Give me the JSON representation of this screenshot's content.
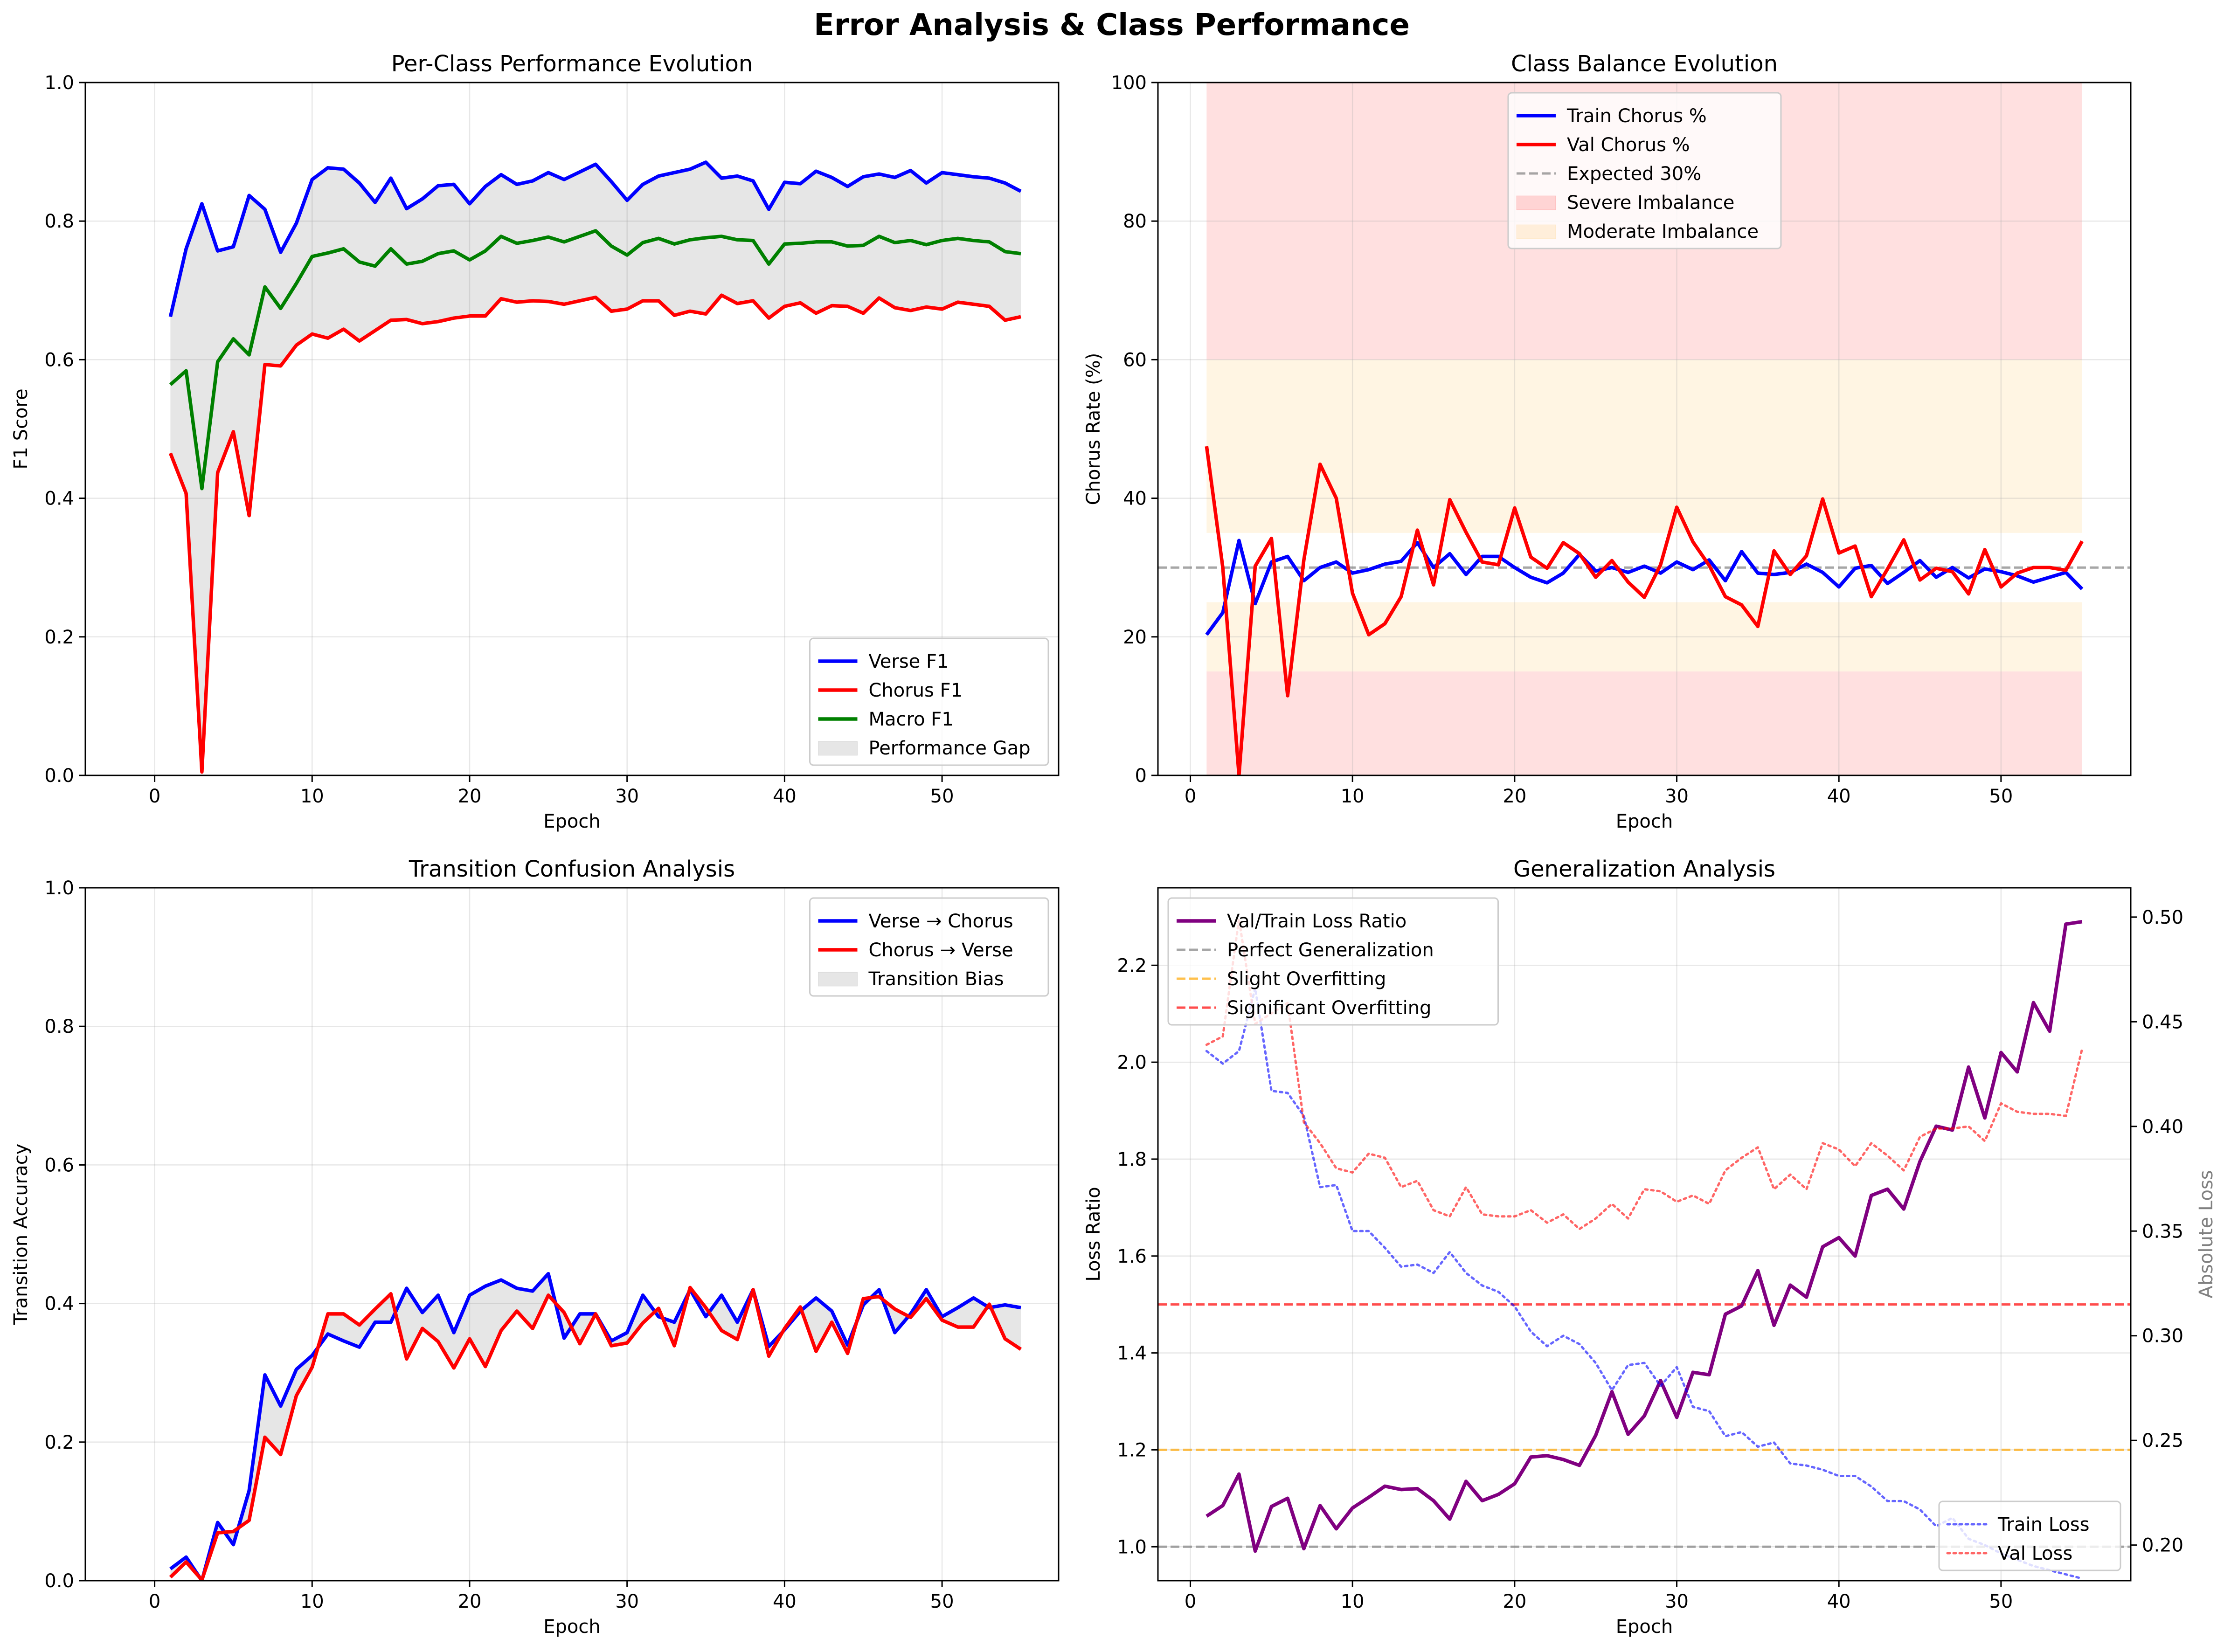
{
  "suptitle": "Error Analysis & Class Performance",
  "chart_data": [
    {
      "type": "line",
      "title": "Per-Class Performance Evolution",
      "xlabel": "Epoch",
      "ylabel": "F1 Score",
      "xlim": [
        -4.4,
        57.4
      ],
      "ylim": [
        0,
        1.0
      ],
      "xticks": [
        0,
        10,
        20,
        30,
        40,
        50
      ],
      "yticks": [
        0.0,
        0.2,
        0.4,
        0.6,
        0.8,
        1.0
      ],
      "ytick_decimals": 1,
      "grid": true,
      "legend_position": "lower-right",
      "x": [
        1,
        2,
        3,
        4,
        5,
        6,
        7,
        8,
        9,
        10,
        11,
        12,
        13,
        14,
        15,
        16,
        17,
        18,
        19,
        20,
        21,
        22,
        23,
        24,
        25,
        26,
        27,
        28,
        29,
        30,
        31,
        32,
        33,
        34,
        35,
        36,
        37,
        38,
        39,
        40,
        41,
        42,
        43,
        44,
        45,
        46,
        47,
        48,
        49,
        50,
        51,
        52,
        53,
        54,
        55
      ],
      "series": [
        {
          "name": "Verse F1",
          "color": "#0000ff",
          "values": [
            0.662,
            0.76,
            0.825,
            0.757,
            0.763,
            0.837,
            0.817,
            0.755,
            0.797,
            0.86,
            0.877,
            0.875,
            0.855,
            0.827,
            0.862,
            0.818,
            0.832,
            0.851,
            0.853,
            0.825,
            0.85,
            0.867,
            0.853,
            0.858,
            0.87,
            0.86,
            0.871,
            0.882,
            0.857,
            0.83,
            0.853,
            0.865,
            0.87,
            0.875,
            0.885,
            0.862,
            0.865,
            0.858,
            0.817,
            0.856,
            0.854,
            0.872,
            0.863,
            0.85,
            0.864,
            0.868,
            0.863,
            0.873,
            0.855,
            0.87,
            0.867,
            0.864,
            0.862,
            0.855,
            0.843
          ]
        },
        {
          "name": "Chorus F1",
          "color": "#ff0000",
          "values": [
            0.465,
            0.407,
            0.005,
            0.437,
            0.496,
            0.375,
            0.593,
            0.591,
            0.621,
            0.637,
            0.631,
            0.644,
            0.627,
            0.642,
            0.657,
            0.658,
            0.652,
            0.655,
            0.66,
            0.663,
            0.663,
            0.688,
            0.683,
            0.685,
            0.684,
            0.68,
            0.685,
            0.69,
            0.67,
            0.673,
            0.685,
            0.685,
            0.664,
            0.67,
            0.666,
            0.693,
            0.681,
            0.685,
            0.66,
            0.677,
            0.682,
            0.667,
            0.678,
            0.677,
            0.667,
            0.689,
            0.675,
            0.671,
            0.676,
            0.673,
            0.683,
            0.68,
            0.677,
            0.657,
            0.662
          ]
        },
        {
          "name": "Macro F1",
          "color": "#008000",
          "values": [
            0.564,
            0.584,
            0.414,
            0.597,
            0.63,
            0.607,
            0.705,
            0.674,
            0.71,
            0.749,
            0.754,
            0.76,
            0.741,
            0.735,
            0.76,
            0.738,
            0.742,
            0.753,
            0.757,
            0.744,
            0.757,
            0.778,
            0.768,
            0.772,
            0.777,
            0.77,
            0.778,
            0.786,
            0.764,
            0.751,
            0.769,
            0.775,
            0.767,
            0.773,
            0.776,
            0.778,
            0.773,
            0.772,
            0.738,
            0.767,
            0.768,
            0.77,
            0.77,
            0.764,
            0.765,
            0.778,
            0.769,
            0.772,
            0.766,
            0.772,
            0.775,
            0.772,
            0.77,
            0.756,
            0.753
          ]
        }
      ],
      "fill_between": {
        "name": "Performance Gap",
        "upper": "Verse F1",
        "lower": "Chorus F1",
        "color": "#808080"
      }
    },
    {
      "type": "line",
      "title": "Class Balance Evolution",
      "xlabel": "Epoch",
      "ylabel": "Chorus Rate (%)",
      "xlim": [
        -2.0,
        58.0
      ],
      "ylim": [
        0,
        100
      ],
      "xticks": [
        0,
        10,
        20,
        30,
        40,
        50
      ],
      "yticks": [
        0,
        20,
        40,
        60,
        80,
        100
      ],
      "ytick_decimals": 0,
      "grid": true,
      "legend_position": "upper-center",
      "x": [
        1,
        2,
        3,
        4,
        5,
        6,
        7,
        8,
        9,
        10,
        11,
        12,
        13,
        14,
        15,
        16,
        17,
        18,
        19,
        20,
        21,
        22,
        23,
        24,
        25,
        26,
        27,
        28,
        29,
        30,
        31,
        32,
        33,
        34,
        35,
        36,
        37,
        38,
        39,
        40,
        41,
        42,
        43,
        44,
        45,
        46,
        47,
        48,
        49,
        50,
        51,
        52,
        53,
        54,
        55
      ],
      "series": [
        {
          "name": "Train Chorus %",
          "color": "#0000ff",
          "values": [
            20.3,
            23.5,
            33.9,
            24.8,
            30.8,
            31.6,
            28.1,
            30.0,
            30.8,
            29.2,
            29.7,
            30.5,
            30.9,
            33.6,
            30.0,
            32.0,
            29.0,
            31.6,
            31.6,
            30.0,
            28.6,
            27.8,
            29.2,
            31.9,
            29.5,
            30.0,
            29.3,
            30.2,
            29.2,
            30.8,
            29.7,
            31.1,
            28.1,
            32.3,
            29.2,
            29.0,
            29.3,
            30.5,
            29.3,
            27.2,
            29.9,
            30.3,
            27.7,
            29.3,
            31.0,
            28.6,
            30.0,
            28.5,
            29.8,
            29.4,
            28.8,
            27.9,
            28.6,
            29.3,
            26.9
          ]
        },
        {
          "name": "Val Chorus %",
          "color": "#ff0000",
          "values": [
            47.5,
            30.0,
            0.0,
            30.2,
            34.2,
            11.5,
            31.1,
            44.9,
            40.0,
            26.3,
            20.3,
            21.9,
            25.8,
            35.4,
            27.5,
            39.8,
            35.1,
            30.8,
            30.4,
            38.6,
            31.5,
            29.9,
            33.6,
            32.0,
            28.6,
            31.0,
            27.9,
            25.7,
            30.4,
            38.7,
            33.7,
            30.3,
            25.8,
            24.6,
            21.5,
            32.4,
            29.0,
            31.7,
            39.9,
            32.1,
            33.1,
            25.8,
            29.8,
            34.0,
            28.2,
            29.9,
            29.4,
            26.2,
            32.6,
            27.2,
            29.2,
            30.0,
            30.0,
            29.6,
            33.8
          ]
        }
      ],
      "reference_line": {
        "name": "Expected 30%",
        "y": 30,
        "color": "#808080"
      },
      "bands": [
        {
          "name": "Severe Imbalance",
          "ranges": [
            [
              0,
              15
            ],
            [
              60,
              100
            ]
          ],
          "x_range": [
            1,
            55
          ],
          "color": "#ff0000"
        },
        {
          "name": "Moderate Imbalance",
          "ranges": [
            [
              15,
              25
            ],
            [
              35,
              60
            ]
          ],
          "x_range": [
            1,
            55
          ],
          "color": "#ffa500"
        }
      ]
    },
    {
      "type": "line",
      "title": "Transition Confusion Analysis",
      "xlabel": "Epoch",
      "ylabel": "Transition Accuracy",
      "xlim": [
        -4.4,
        57.4
      ],
      "ylim": [
        0,
        1.0
      ],
      "xticks": [
        0,
        10,
        20,
        30,
        40,
        50
      ],
      "yticks": [
        0.0,
        0.2,
        0.4,
        0.6,
        0.8,
        1.0
      ],
      "ytick_decimals": 1,
      "grid": true,
      "legend_position": "top-right",
      "x": [
        1,
        2,
        3,
        4,
        5,
        6,
        7,
        8,
        9,
        10,
        11,
        12,
        13,
        14,
        15,
        16,
        17,
        18,
        19,
        20,
        21,
        22,
        23,
        24,
        25,
        26,
        27,
        28,
        29,
        30,
        31,
        32,
        33,
        34,
        35,
        36,
        37,
        38,
        39,
        40,
        41,
        42,
        43,
        44,
        45,
        46,
        47,
        48,
        49,
        50,
        51,
        52,
        53,
        54,
        55
      ],
      "series": [
        {
          "name": "Verse → Chorus",
          "color": "#0000ff",
          "values": [
            0.017,
            0.034,
            0.0,
            0.084,
            0.052,
            0.13,
            0.297,
            0.252,
            0.305,
            0.325,
            0.356,
            0.346,
            0.337,
            0.373,
            0.373,
            0.422,
            0.387,
            0.412,
            0.358,
            0.412,
            0.425,
            0.434,
            0.422,
            0.418,
            0.443,
            0.35,
            0.385,
            0.385,
            0.346,
            0.358,
            0.412,
            0.381,
            0.373,
            0.42,
            0.381,
            0.412,
            0.373,
            0.42,
            0.338,
            0.362,
            0.389,
            0.408,
            0.389,
            0.34,
            0.398,
            0.42,
            0.358,
            0.385,
            0.42,
            0.381,
            0.394,
            0.408,
            0.394,
            0.398,
            0.394
          ]
        },
        {
          "name": "Chorus → Verse",
          "color": "#ff0000",
          "values": [
            0.005,
            0.027,
            0.001,
            0.069,
            0.071,
            0.087,
            0.207,
            0.182,
            0.267,
            0.308,
            0.385,
            0.385,
            0.369,
            0.392,
            0.414,
            0.32,
            0.364,
            0.345,
            0.307,
            0.349,
            0.309,
            0.361,
            0.389,
            0.364,
            0.412,
            0.387,
            0.342,
            0.385,
            0.339,
            0.343,
            0.372,
            0.393,
            0.339,
            0.423,
            0.394,
            0.361,
            0.348,
            0.42,
            0.324,
            0.364,
            0.395,
            0.331,
            0.373,
            0.328,
            0.407,
            0.41,
            0.392,
            0.38,
            0.407,
            0.376,
            0.366,
            0.366,
            0.399,
            0.349,
            0.334
          ]
        }
      ],
      "fill_between": {
        "name": "Transition Bias",
        "upper": "Verse → Chorus",
        "lower": "Chorus → Verse",
        "color": "#808080"
      }
    },
    {
      "type": "line",
      "title": "Generalization Analysis",
      "xlabel": "Epoch",
      "ylabel": "Loss Ratio",
      "y2label": "Absolute Loss",
      "xlim": [
        -2.0,
        58.0
      ],
      "ylim": [
        0.93,
        2.36
      ],
      "y2lim": [
        0.183,
        0.514
      ],
      "xticks": [
        0,
        10,
        20,
        30,
        40,
        50
      ],
      "yticks": [
        1.0,
        1.2,
        1.4,
        1.6,
        1.8,
        2.0,
        2.2
      ],
      "y2ticks": [
        0.2,
        0.25,
        0.3,
        0.35,
        0.4,
        0.45,
        0.5
      ],
      "ytick_decimals": 1,
      "y2tick_decimals": 2,
      "grid": true,
      "legend_position": "top-left",
      "legend2_position": "bottom-right",
      "x": [
        1,
        2,
        3,
        4,
        5,
        6,
        7,
        8,
        9,
        10,
        11,
        12,
        13,
        14,
        15,
        16,
        17,
        18,
        19,
        20,
        21,
        22,
        23,
        24,
        25,
        26,
        27,
        28,
        29,
        30,
        31,
        32,
        33,
        34,
        35,
        36,
        37,
        38,
        39,
        40,
        41,
        42,
        43,
        44,
        45,
        46,
        47,
        48,
        49,
        50,
        51,
        52,
        53,
        54,
        55
      ],
      "series": [
        {
          "name": "Val/Train Loss Ratio",
          "axis": "left",
          "color": "#800080",
          "values": [
            1.063,
            1.085,
            1.15,
            0.991,
            1.083,
            1.1,
            0.996,
            1.085,
            1.037,
            1.08,
            1.102,
            1.125,
            1.118,
            1.12,
            1.095,
            1.057,
            1.135,
            1.095,
            1.108,
            1.13,
            1.185,
            1.188,
            1.18,
            1.168,
            1.23,
            1.32,
            1.232,
            1.27,
            1.343,
            1.267,
            1.36,
            1.355,
            1.48,
            1.497,
            1.57,
            1.457,
            1.54,
            1.515,
            1.619,
            1.638,
            1.6,
            1.725,
            1.738,
            1.697,
            1.795,
            1.868,
            1.86,
            1.99,
            1.885,
            2.02,
            1.98,
            2.123,
            2.064,
            2.285,
            2.29
          ]
        },
        {
          "name": "Train Loss",
          "axis": "right",
          "color": "#0000ff",
          "style": "dotted",
          "values": [
            0.436,
            0.43,
            0.436,
            0.466,
            0.417,
            0.416,
            0.405,
            0.371,
            0.372,
            0.35,
            0.35,
            0.342,
            0.333,
            0.334,
            0.33,
            0.34,
            0.33,
            0.324,
            0.321,
            0.314,
            0.302,
            0.295,
            0.3,
            0.296,
            0.287,
            0.274,
            0.286,
            0.287,
            0.276,
            0.285,
            0.266,
            0.264,
            0.252,
            0.254,
            0.247,
            0.249,
            0.239,
            0.238,
            0.236,
            0.233,
            0.233,
            0.228,
            0.221,
            0.221,
            0.217,
            0.209,
            0.213,
            0.203,
            0.2,
            0.196,
            0.193,
            0.19,
            0.188,
            0.186,
            0.184
          ]
        },
        {
          "name": "Val Loss",
          "axis": "right",
          "color": "#ff0000",
          "style": "dotted",
          "values": [
            0.439,
            0.443,
            0.499,
            0.449,
            0.454,
            0.459,
            0.402,
            0.392,
            0.38,
            0.378,
            0.387,
            0.385,
            0.371,
            0.374,
            0.36,
            0.357,
            0.371,
            0.358,
            0.357,
            0.357,
            0.36,
            0.354,
            0.358,
            0.351,
            0.356,
            0.363,
            0.356,
            0.37,
            0.369,
            0.364,
            0.367,
            0.363,
            0.379,
            0.385,
            0.39,
            0.37,
            0.377,
            0.37,
            0.392,
            0.389,
            0.381,
            0.392,
            0.386,
            0.379,
            0.395,
            0.399,
            0.399,
            0.4,
            0.393,
            0.411,
            0.407,
            0.406,
            0.406,
            0.405,
            0.437
          ]
        }
      ],
      "reference_lines": [
        {
          "name": "Perfect Generalization",
          "y": 1.0,
          "color": "#808080"
        },
        {
          "name": "Slight Overfitting",
          "y": 1.2,
          "color": "#ffa500"
        },
        {
          "name": "Significant Overfitting",
          "y": 1.5,
          "color": "#ff0000"
        }
      ]
    }
  ]
}
